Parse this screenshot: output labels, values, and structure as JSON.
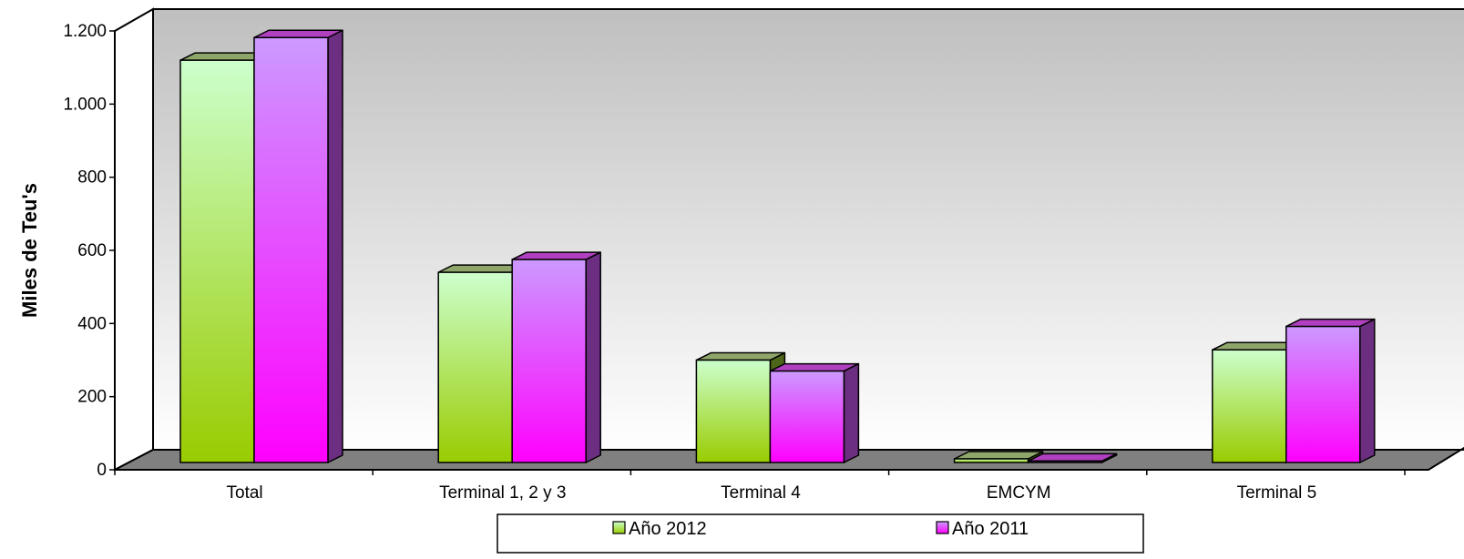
{
  "chart_data": {
    "type": "bar",
    "title": "",
    "xlabel": "",
    "ylabel": "Miles de Teu's",
    "ylim": [
      0,
      1200
    ],
    "yticks": [
      0,
      200,
      400,
      600,
      800,
      1000,
      1200
    ],
    "ytick_labels": [
      "0",
      "200",
      "400",
      "600",
      "800",
      "1.000",
      "1.200"
    ],
    "categories": [
      "Total",
      "Terminal 1, 2 y 3",
      "Terminal 4",
      "EMCYM",
      "Terminal 5"
    ],
    "series": [
      {
        "name": "Año 2012",
        "values": [
          1100,
          520,
          280,
          10,
          308
        ],
        "color_top": "#ccffcc",
        "color_bottom": "#99cc00",
        "color_side": "#4d6619",
        "color_cap": "#8fa66a"
      },
      {
        "name": "Año 2011",
        "values": [
          1162,
          555,
          250,
          4,
          372
        ],
        "color_top": "#cc99ff",
        "color_bottom": "#ff00ff",
        "color_side": "#6b2e80",
        "color_cap": "#b040c0"
      }
    ],
    "grid": false,
    "legend_position": "bottom",
    "three_d": true,
    "colors": {
      "wall_top": "#bfbfbf",
      "wall_bottom": "#ffffff",
      "floor": "#808080"
    }
  }
}
